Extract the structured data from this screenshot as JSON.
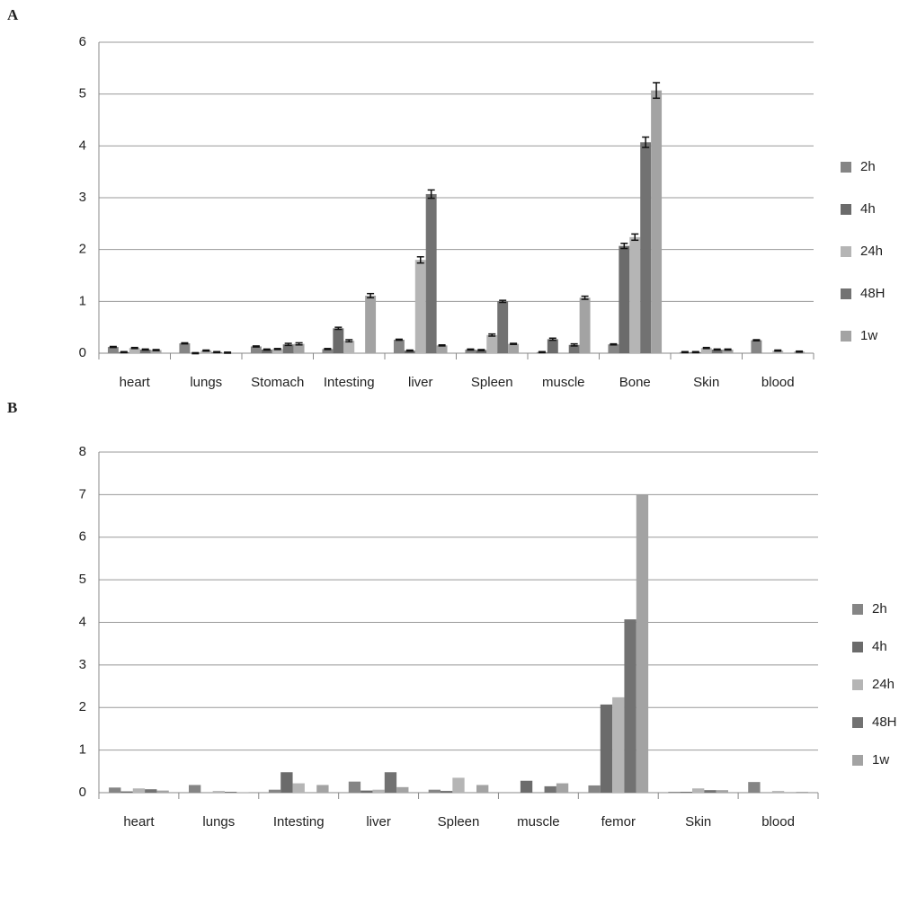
{
  "chart_data": [
    {
      "type": "bar",
      "panel": "A",
      "categories": [
        "heart",
        "lungs",
        "Stomach",
        "Intesting",
        "liver",
        "Spleen",
        "muscle",
        "Bone",
        "Skin",
        "blood"
      ],
      "series": [
        {
          "name": "2h",
          "color": "#858585",
          "values": [
            0.12,
            0.19,
            0.13,
            0.08,
            0.26,
            0.07,
            0.02,
            0.17,
            0.02,
            0.25
          ],
          "errors": [
            0.01,
            0.01,
            0.01,
            0.01,
            0.01,
            0.01,
            0.01,
            0.01,
            0.01,
            0.01
          ]
        },
        {
          "name": "4h",
          "color": "#6b6b6b",
          "values": [
            0.02,
            0.0,
            0.07,
            0.48,
            0.05,
            0.06,
            0.27,
            2.07,
            0.02,
            0.0
          ],
          "errors": [
            0.01,
            0.01,
            0.01,
            0.02,
            0.01,
            0.01,
            0.02,
            0.05,
            0.01,
            0.0
          ]
        },
        {
          "name": "24h",
          "color": "#b5b5b5",
          "values": [
            0.1,
            0.05,
            0.08,
            0.24,
            1.8,
            0.35,
            0.0,
            2.24,
            0.1,
            0.05
          ],
          "errors": [
            0.01,
            0.01,
            0.01,
            0.02,
            0.06,
            0.02,
            0.0,
            0.06,
            0.01,
            0.01
          ]
        },
        {
          "name": "48H",
          "color": "#727272",
          "values": [
            0.07,
            0.02,
            0.17,
            0.0,
            3.07,
            1.0,
            0.16,
            4.07,
            0.07,
            0.0
          ],
          "errors": [
            0.01,
            0.01,
            0.02,
            0.0,
            0.08,
            0.02,
            0.02,
            0.1,
            0.01,
            0.0
          ]
        },
        {
          "name": "1w",
          "color": "#a3a3a3",
          "values": [
            0.06,
            0.01,
            0.18,
            1.11,
            0.15,
            0.18,
            1.07,
            5.07,
            0.07,
            0.03
          ],
          "errors": [
            0.01,
            0.01,
            0.02,
            0.04,
            0.01,
            0.01,
            0.03,
            0.15,
            0.01,
            0.01
          ]
        }
      ],
      "ylim": [
        0,
        6
      ],
      "yticks": [
        0,
        1,
        2,
        3,
        4,
        5,
        6
      ],
      "grid": true,
      "legend": "right"
    },
    {
      "type": "bar",
      "panel": "B",
      "categories": [
        "heart",
        "lungs",
        "Intesting",
        "liver",
        "Spleen",
        "muscle",
        "femor",
        "Skin",
        "blood"
      ],
      "series": [
        {
          "name": "2h",
          "color": "#858585",
          "values": [
            0.12,
            0.18,
            0.07,
            0.26,
            0.07,
            0.0,
            0.17,
            0.02,
            0.25
          ]
        },
        {
          "name": "4h",
          "color": "#6b6b6b",
          "values": [
            0.03,
            0.0,
            0.48,
            0.05,
            0.04,
            0.28,
            2.07,
            0.02,
            0.0
          ]
        },
        {
          "name": "24h",
          "color": "#b5b5b5",
          "values": [
            0.1,
            0.04,
            0.22,
            0.07,
            0.35,
            0.0,
            2.24,
            0.1,
            0.04
          ]
        },
        {
          "name": "48H",
          "color": "#727272",
          "values": [
            0.08,
            0.02,
            0.0,
            0.48,
            0.0,
            0.15,
            4.07,
            0.06,
            0.0
          ]
        },
        {
          "name": "1w",
          "color": "#a3a3a3",
          "values": [
            0.05,
            0.01,
            0.18,
            0.13,
            0.18,
            0.22,
            7.0,
            0.06,
            0.02
          ]
        }
      ],
      "ylim": [
        0,
        8
      ],
      "yticks": [
        0,
        1,
        2,
        3,
        4,
        5,
        6,
        7,
        8
      ],
      "grid": true,
      "legend": "right"
    }
  ]
}
